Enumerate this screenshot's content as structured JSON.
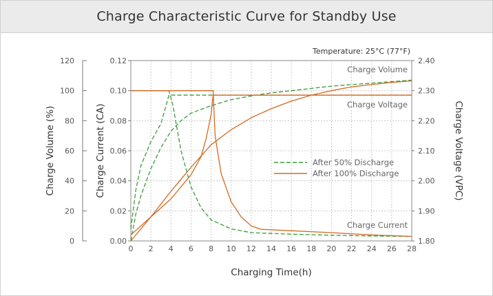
{
  "title": "Charge Characteristic Curve for Standby Use",
  "chart_data": {
    "type": "line",
    "title": "Charge Characteristic Curve for Standby Use",
    "annotation": "Temperature: 25°C (77°F)",
    "xlabel": "Charging Time(h)",
    "xlim": [
      0,
      28
    ],
    "xticks": [
      "0",
      "2",
      "4",
      "6",
      "8",
      "10",
      "12",
      "14",
      "16",
      "18",
      "20",
      "22",
      "24",
      "26",
      "28"
    ],
    "grid": true,
    "axes": {
      "volume": {
        "label": "Charge Volume (%)",
        "side": "left-outer",
        "range": [
          0,
          120
        ],
        "ticks": [
          "0",
          "20",
          "40",
          "60",
          "80",
          "100",
          "120"
        ]
      },
      "current": {
        "label": "Charge Current (CA)",
        "side": "left-inner",
        "range": [
          0,
          0.12
        ],
        "ticks": [
          "0.00",
          "0.02",
          "0.04",
          "0.06",
          "0.08",
          "0.10",
          "0.12"
        ]
      },
      "voltage": {
        "label": "Charge Voltage (VPC)",
        "side": "right",
        "range": [
          1.8,
          2.4
        ],
        "ticks": [
          "1.80",
          "1.90",
          "2.00",
          "2.10",
          "2.20",
          "2.30",
          "2.40"
        ]
      }
    },
    "curve_labels": {
      "volume": "Charge Volume",
      "voltage": "Charge Voltage",
      "current": "Charge Current"
    },
    "legend": {
      "position": "center-right",
      "entries": [
        {
          "label": "After 50% Discharge",
          "style": "dashed",
          "color": "#3a9a3a"
        },
        {
          "label": "After 100% Discharge",
          "style": "solid",
          "color": "#d2691e"
        }
      ]
    },
    "series": [
      {
        "group": "After 50% Discharge",
        "quantity": "volume",
        "axis": "volume",
        "color": "#3a9a3a",
        "style": "dashed",
        "points": [
          [
            0,
            0
          ],
          [
            0.5,
            18
          ],
          [
            1,
            30
          ],
          [
            2,
            48
          ],
          [
            3,
            62
          ],
          [
            4,
            73
          ],
          [
            5,
            80
          ],
          [
            6,
            85
          ],
          [
            8,
            90
          ],
          [
            10,
            94
          ],
          [
            12,
            96.5
          ],
          [
            14,
            98.5
          ],
          [
            16,
            100
          ],
          [
            18,
            101.5
          ],
          [
            20,
            103
          ],
          [
            22,
            104
          ],
          [
            24,
            105
          ],
          [
            26,
            106
          ],
          [
            28,
            107
          ]
        ]
      },
      {
        "group": "After 50% Discharge",
        "quantity": "current",
        "axis": "current",
        "color": "#3a9a3a",
        "style": "dashed",
        "points": [
          [
            0,
            0.1
          ],
          [
            3.8,
            0.1
          ],
          [
            4.2,
            0.09
          ],
          [
            5,
            0.06
          ],
          [
            6,
            0.036
          ],
          [
            7,
            0.022
          ],
          [
            8,
            0.014
          ],
          [
            10,
            0.008
          ],
          [
            12,
            0.0055
          ],
          [
            16,
            0.0045
          ],
          [
            20,
            0.0038
          ],
          [
            24,
            0.0033
          ],
          [
            28,
            0.003
          ]
        ]
      },
      {
        "group": "After 50% Discharge",
        "quantity": "voltage",
        "axis": "voltage",
        "color": "#3a9a3a",
        "style": "dashed",
        "points": [
          [
            0,
            1.84
          ],
          [
            0.5,
            1.97
          ],
          [
            1,
            2.05
          ],
          [
            2,
            2.13
          ],
          [
            3,
            2.19
          ],
          [
            3.8,
            2.285
          ],
          [
            28,
            2.285
          ]
        ]
      },
      {
        "group": "After 100% Discharge",
        "quantity": "volume",
        "axis": "volume",
        "color": "#d2691e",
        "style": "solid",
        "points": [
          [
            0,
            0
          ],
          [
            2,
            16
          ],
          [
            4,
            33
          ],
          [
            6,
            49
          ],
          [
            8,
            64
          ],
          [
            10,
            74
          ],
          [
            12,
            82
          ],
          [
            14,
            88
          ],
          [
            16,
            93
          ],
          [
            18,
            97
          ],
          [
            20,
            100
          ],
          [
            22,
            102.5
          ],
          [
            24,
            104
          ],
          [
            26,
            105.5
          ],
          [
            28,
            106.5
          ]
        ]
      },
      {
        "group": "After 100% Discharge",
        "quantity": "current",
        "axis": "current",
        "color": "#d2691e",
        "style": "solid",
        "points": [
          [
            0,
            0.1
          ],
          [
            8.2,
            0.1
          ],
          [
            8.4,
            0.07
          ],
          [
            9,
            0.045
          ],
          [
            10,
            0.026
          ],
          [
            11,
            0.016
          ],
          [
            12,
            0.01
          ],
          [
            13,
            0.0077
          ],
          [
            16,
            0.0068
          ],
          [
            20,
            0.0055
          ],
          [
            24,
            0.004
          ],
          [
            28,
            0.003
          ]
        ]
      },
      {
        "group": "After 100% Discharge",
        "quantity": "voltage",
        "axis": "voltage",
        "color": "#d2691e",
        "style": "solid",
        "points": [
          [
            0,
            1.82
          ],
          [
            1,
            1.85
          ],
          [
            2,
            1.88
          ],
          [
            4,
            1.94
          ],
          [
            6,
            2.02
          ],
          [
            7,
            2.08
          ],
          [
            7.5,
            2.14
          ],
          [
            8,
            2.22
          ],
          [
            8.2,
            2.285
          ],
          [
            28,
            2.285
          ]
        ]
      }
    ]
  }
}
